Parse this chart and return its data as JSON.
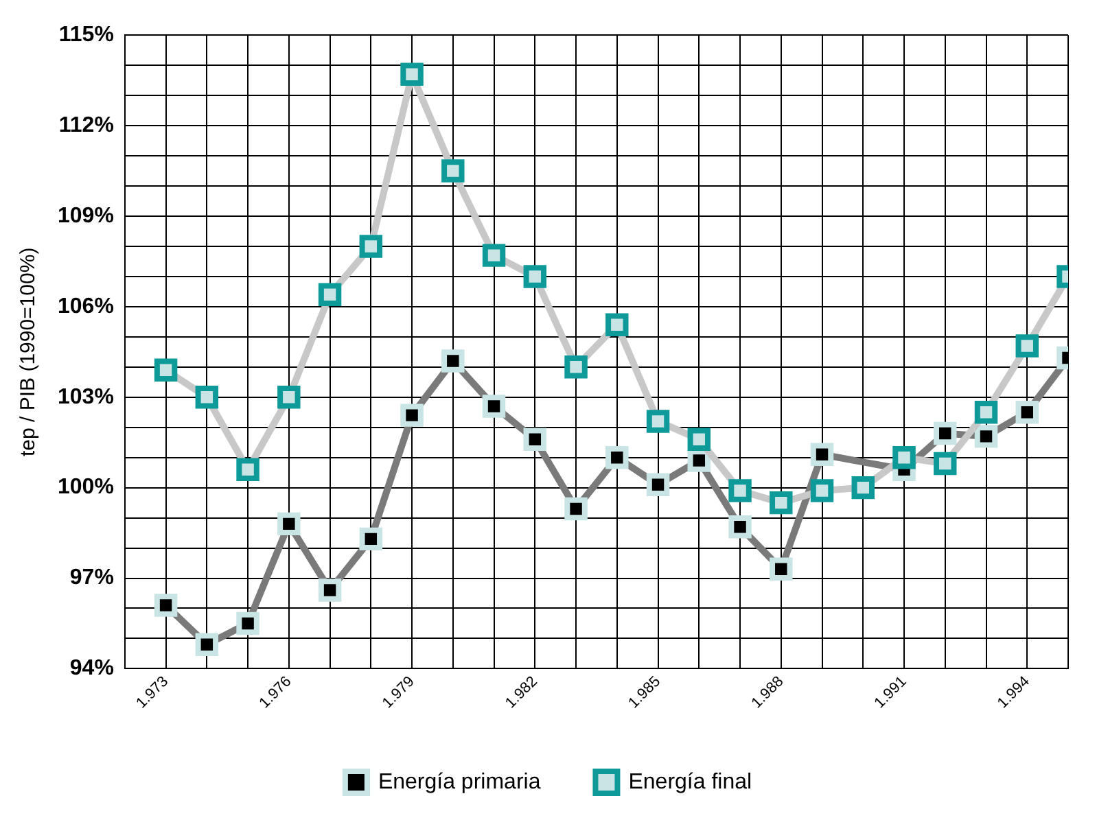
{
  "chart_data": {
    "type": "line",
    "ylabel": "tep / PIB (1990=100%)",
    "x": [
      1973,
      1974,
      1975,
      1976,
      1977,
      1978,
      1979,
      1980,
      1981,
      1982,
      1983,
      1984,
      1985,
      1986,
      1987,
      1988,
      1989,
      1990,
      1991,
      1992,
      1993,
      1994,
      1995
    ],
    "series": [
      {
        "name": "Energía primaria",
        "color": "#7a7a7a",
        "values": [
          96.1,
          94.8,
          95.5,
          98.8,
          96.6,
          98.3,
          102.4,
          104.2,
          102.7,
          101.6,
          99.3,
          101.0,
          100.1,
          100.9,
          98.7,
          97.3,
          101.1,
          null,
          100.6,
          101.8,
          101.7,
          102.5,
          104.3
        ]
      },
      {
        "name": "Energía final",
        "color": "#0f9a9a",
        "values": [
          103.9,
          103.0,
          100.6,
          103.0,
          106.4,
          108.0,
          113.7,
          110.5,
          107.7,
          107.0,
          104.0,
          105.4,
          102.2,
          101.6,
          99.9,
          99.5,
          99.9,
          100.0,
          101.0,
          100.8,
          102.5,
          104.7,
          107.0
        ]
      }
    ],
    "xlim": [
      1972,
      1995
    ],
    "xticks": [
      {
        "value": 1972,
        "label": null
      },
      {
        "value": 1973,
        "label": "1.973"
      },
      {
        "value": 1974,
        "label": null
      },
      {
        "value": 1975,
        "label": null
      },
      {
        "value": 1976,
        "label": "1.976"
      },
      {
        "value": 1977,
        "label": null
      },
      {
        "value": 1978,
        "label": null
      },
      {
        "value": 1979,
        "label": "1.979"
      },
      {
        "value": 1980,
        "label": null
      },
      {
        "value": 1981,
        "label": null
      },
      {
        "value": 1982,
        "label": "1.982"
      },
      {
        "value": 1983,
        "label": null
      },
      {
        "value": 1984,
        "label": null
      },
      {
        "value": 1985,
        "label": "1.985"
      },
      {
        "value": 1986,
        "label": null
      },
      {
        "value": 1987,
        "label": null
      },
      {
        "value": 1988,
        "label": "1.988"
      },
      {
        "value": 1989,
        "label": null
      },
      {
        "value": 1990,
        "label": null
      },
      {
        "value": 1991,
        "label": "1.991"
      },
      {
        "value": 1992,
        "label": null
      },
      {
        "value": 1993,
        "label": null
      },
      {
        "value": 1994,
        "label": "1.994"
      },
      {
        "value": 1995,
        "label": null
      }
    ],
    "ylim": [
      94,
      115
    ],
    "yticks": [
      {
        "value": 94,
        "label": "94%"
      },
      {
        "value": 95,
        "label": null
      },
      {
        "value": 96,
        "label": null
      },
      {
        "value": 97,
        "label": "97%"
      },
      {
        "value": 98,
        "label": null
      },
      {
        "value": 99,
        "label": null
      },
      {
        "value": 100,
        "label": "100%"
      },
      {
        "value": 101,
        "label": null
      },
      {
        "value": 102,
        "label": null
      },
      {
        "value": 103,
        "label": "103%"
      },
      {
        "value": 104,
        "label": null
      },
      {
        "value": 105,
        "label": null
      },
      {
        "value": 106,
        "label": "106%"
      },
      {
        "value": 107,
        "label": null
      },
      {
        "value": 108,
        "label": null
      },
      {
        "value": 109,
        "label": "109%"
      },
      {
        "value": 110,
        "label": null
      },
      {
        "value": 111,
        "label": null
      },
      {
        "value": 112,
        "label": "112%"
      },
      {
        "value": 113,
        "label": null
      },
      {
        "value": 114,
        "label": null
      },
      {
        "value": 115,
        "label": "115%"
      }
    ],
    "grid": true,
    "legend": "bottom",
    "marker": "square",
    "line_style": "solid"
  }
}
